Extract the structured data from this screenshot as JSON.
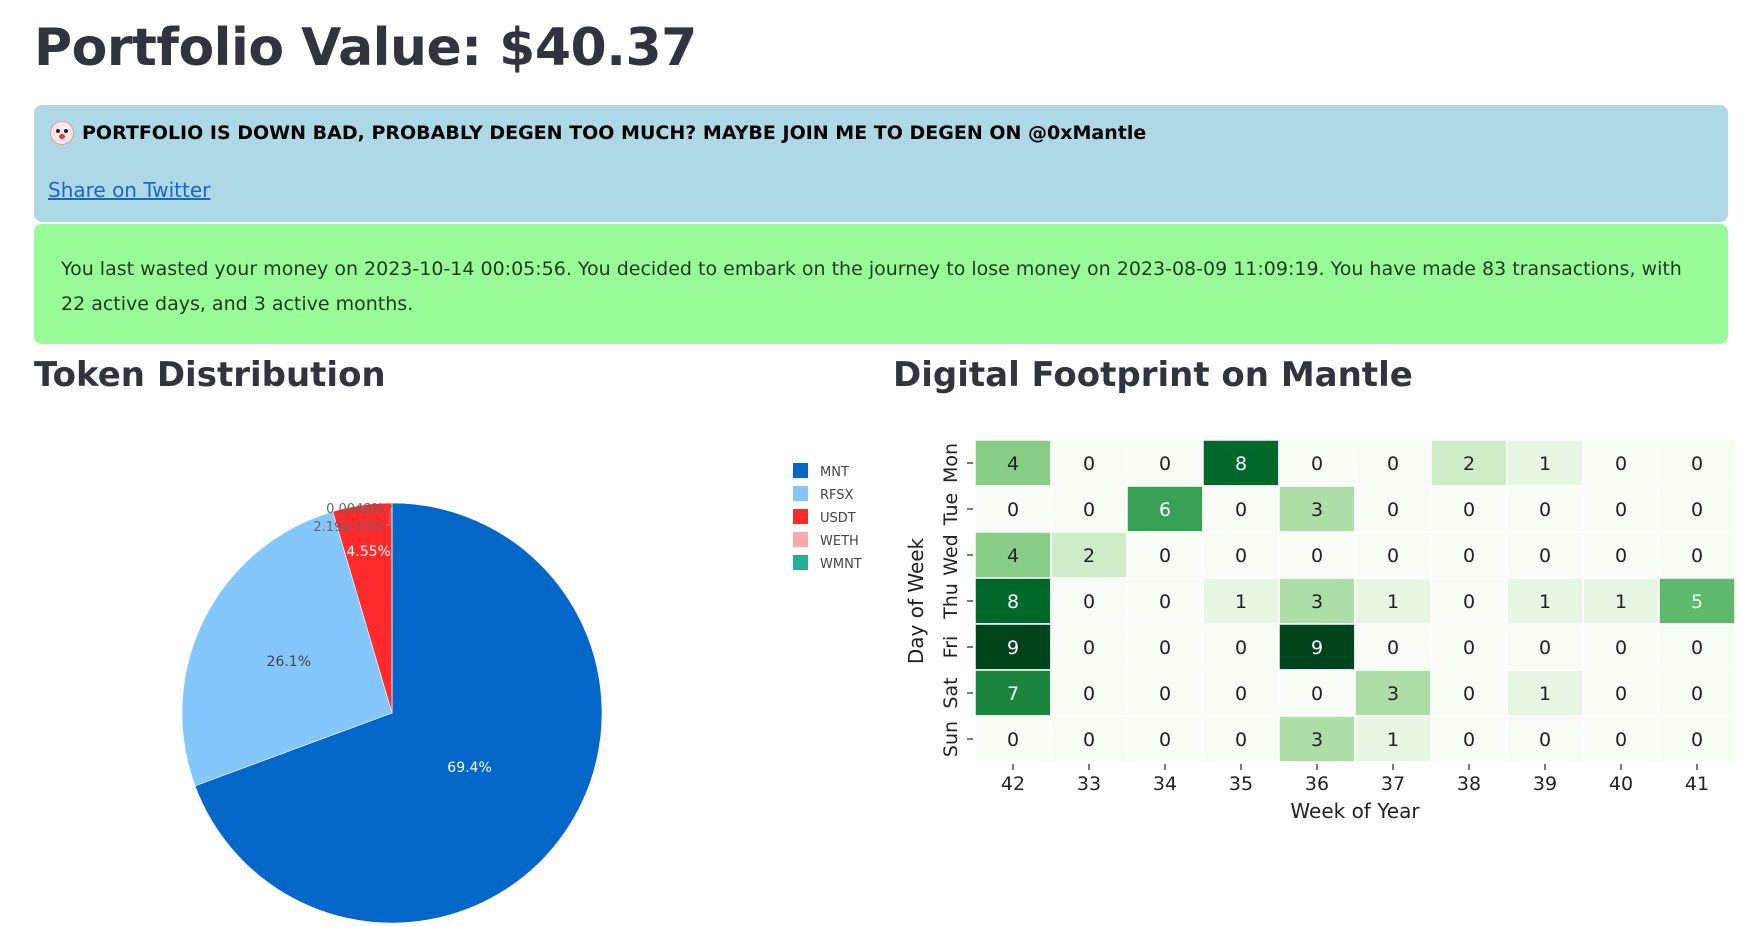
{
  "header": {
    "title": "Portfolio Value: $40.37"
  },
  "info_banner": {
    "icon": "clown-face-icon",
    "message": "PORTFOLIO IS DOWN BAD, PROBABLY DEGEN TOO MUCH? MAYBE JOIN ME TO DEGEN ON @0xMantle",
    "link_label": "Share on Twitter",
    "background": "#add8e6"
  },
  "success_banner": {
    "text": "You last wasted your money on 2023-10-14 00:05:56. You decided to embark on the journey to lose money on 2023-08-09 11:09:19. You have made 83 transactions, with 22 active days, and 3 active months.",
    "background": "#98fb98"
  },
  "sections": {
    "token_title": "Token Distribution",
    "footprint_title": "Digital Footprint on Mantle"
  },
  "chart_data": [
    {
      "type": "pie",
      "labels": [
        "MNT",
        "RFSX",
        "USDT",
        "WETH",
        "WMNT"
      ],
      "values": [
        69.4,
        26.1,
        4.55,
        0.0048,
        2.19e-15
      ],
      "value_labels": [
        "69.4%",
        "26.1%",
        "4.55%",
        "0.0048%",
        "2.19e-15%"
      ],
      "colors": [
        "#0366c9",
        "#84c7fd",
        "#fe2a2b",
        "#fea9a9",
        "#21b096"
      ],
      "legend_position": "right"
    },
    {
      "type": "heatmap",
      "xlabel": "Week of Year",
      "ylabel": "Day of Week",
      "x": [
        "42",
        "33",
        "34",
        "35",
        "36",
        "37",
        "38",
        "39",
        "40",
        "41"
      ],
      "y": [
        "Mon",
        "Tue",
        "Wed",
        "Thu",
        "Fri",
        "Sat",
        "Sun"
      ],
      "values": [
        [
          4,
          0,
          0,
          8,
          0,
          0,
          2,
          1,
          0,
          0
        ],
        [
          0,
          0,
          6,
          0,
          3,
          0,
          0,
          0,
          0,
          0
        ],
        [
          4,
          2,
          0,
          0,
          0,
          0,
          0,
          0,
          0,
          0
        ],
        [
          8,
          0,
          0,
          1,
          3,
          1,
          0,
          1,
          1,
          5
        ],
        [
          9,
          0,
          0,
          0,
          9,
          0,
          0,
          0,
          0,
          0
        ],
        [
          7,
          0,
          0,
          0,
          0,
          3,
          0,
          1,
          0,
          0
        ],
        [
          0,
          0,
          0,
          0,
          3,
          1,
          0,
          0,
          0,
          0
        ]
      ],
      "colormap": "Greens",
      "value_range": [
        0,
        9
      ]
    }
  ]
}
